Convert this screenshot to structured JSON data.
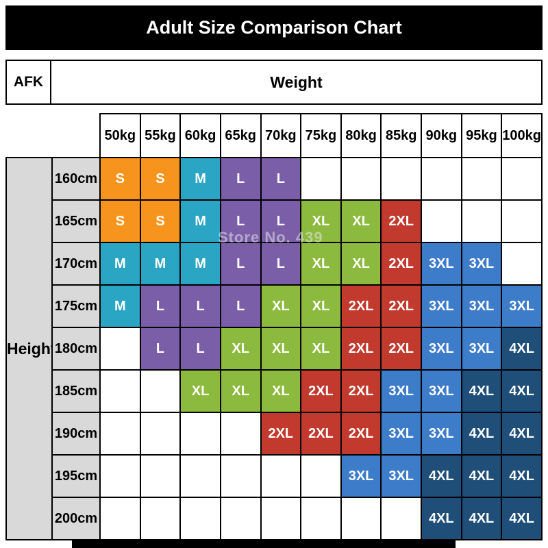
{
  "title": "Adult Size Comparison Chart",
  "header": {
    "corner_label": "AFK",
    "weight_label": "Weight",
    "height_label": "Height"
  },
  "watermark": "Store No. 439",
  "colors": {
    "title_bar_bg": "#000000",
    "title_bar_text": "#ffffff",
    "axis_label_bg": "#d9d9d9",
    "grid_border": "#000000"
  },
  "chart_data": {
    "type": "table",
    "title": "Adult Size Comparison Chart",
    "x_axis_header": "Weight",
    "y_axis_header": "Height",
    "columns": [
      "50kg",
      "55kg",
      "60kg",
      "65kg",
      "70kg",
      "75kg",
      "80kg",
      "85kg",
      "90kg",
      "95kg",
      "100kg"
    ],
    "rows": [
      "160cm",
      "165cm",
      "170cm",
      "175cm",
      "180cm",
      "185cm",
      "190cm",
      "195cm",
      "200cm"
    ],
    "cells": [
      [
        "S",
        "S",
        "M",
        "L",
        "L",
        "",
        "",
        "",
        "",
        "",
        ""
      ],
      [
        "S",
        "S",
        "M",
        "L",
        "L",
        "XL",
        "XL",
        "2XL",
        "",
        "",
        ""
      ],
      [
        "M",
        "M",
        "M",
        "L",
        "L",
        "XL",
        "XL",
        "2XL",
        "3XL",
        "3XL",
        ""
      ],
      [
        "M",
        "L",
        "L",
        "L",
        "XL",
        "XL",
        "2XL",
        "2XL",
        "3XL",
        "3XL",
        "3XL"
      ],
      [
        "",
        "L",
        "L",
        "XL",
        "XL",
        "XL",
        "2XL",
        "2XL",
        "3XL",
        "3XL",
        "4XL"
      ],
      [
        "",
        "",
        "XL",
        "XL",
        "XL",
        "2XL",
        "2XL",
        "3XL",
        "3XL",
        "4XL",
        "4XL"
      ],
      [
        "",
        "",
        "",
        "",
        "2XL",
        "2XL",
        "2XL",
        "3XL",
        "3XL",
        "4XL",
        "4XL"
      ],
      [
        "",
        "",
        "",
        "",
        "",
        "",
        "3XL",
        "3XL",
        "4XL",
        "4XL",
        "4XL"
      ],
      [
        "",
        "",
        "",
        "",
        "",
        "",
        "",
        "",
        "4XL",
        "4XL",
        "4XL"
      ]
    ],
    "size_colors": {
      "S": "#f7941e",
      "M": "#2ba5c4",
      "L": "#7a5ea8",
      "XL": "#8cba3e",
      "2XL": "#c23a2e",
      "3XL": "#3d7cc9",
      "4XL": "#1f4e79"
    }
  }
}
